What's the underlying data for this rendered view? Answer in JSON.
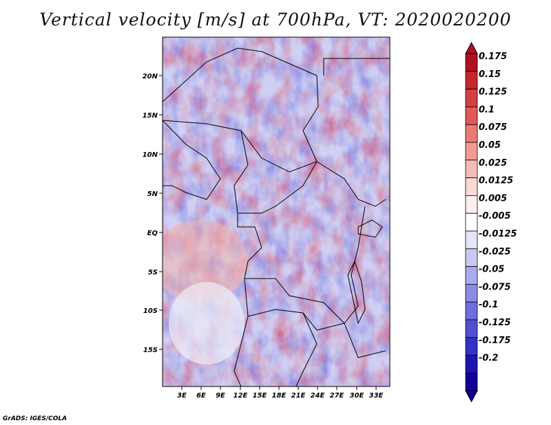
{
  "title": "Vertical velocity [m/s] at 700hPa, VT: 2020020200",
  "credit": "GrADS: IGES/COLA",
  "map": {
    "lat_ticks": [
      "20N",
      "15N",
      "10N",
      "5N",
      "EQ",
      "5S",
      "10S",
      "15S"
    ],
    "lon_ticks": [
      "3E",
      "6E",
      "9E",
      "12E",
      "15E",
      "18E",
      "21E",
      "24E",
      "27E",
      "30E",
      "33E"
    ]
  },
  "colorbar": {
    "labels": [
      "0.175",
      "0.15",
      "0.125",
      "0.1",
      "0.075",
      "0.05",
      "0.025",
      "0.0125",
      "0.005",
      "-0.005",
      "-0.0125",
      "-0.025",
      "-0.05",
      "-0.075",
      "-0.1",
      "-0.125",
      "-0.175",
      "-0.2"
    ],
    "colors": [
      "#b01020",
      "#c4262e",
      "#d33f42",
      "#e25a58",
      "#ec7a74",
      "#f29a94",
      "#f7bcb6",
      "#fbd9d5",
      "#fdf0ee",
      "#ffffff",
      "#e6e6fb",
      "#c8c8f4",
      "#aaaaee",
      "#8c8ce6",
      "#6e6ede",
      "#5050d2",
      "#3232c4",
      "#1e14b0",
      "#14009a"
    ]
  }
}
